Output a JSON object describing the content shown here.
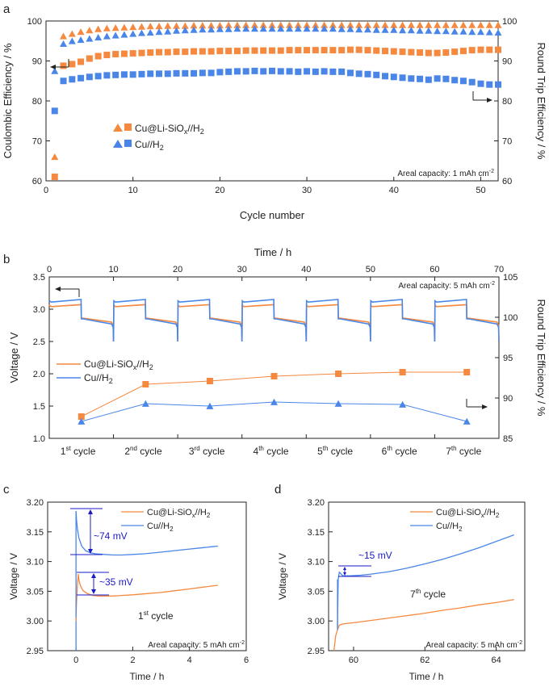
{
  "colors": {
    "orange": "#F4893F",
    "blue": "#4A86E8",
    "annot": "#1A1AC8",
    "axis": "#222222"
  },
  "chart_data": [
    {
      "panel": "a",
      "type": "scatter",
      "xlabel": "Cycle number",
      "ylabel": "Coulombic Efficiency / %",
      "y2label": "Round Trip Efficiency / %",
      "xlim": [
        0,
        52
      ],
      "ylim": [
        60,
        100
      ],
      "y2lim": [
        60,
        100
      ],
      "xticks": [
        0,
        10,
        20,
        30,
        40,
        50
      ],
      "yticks": [
        60,
        70,
        80,
        90,
        100
      ],
      "annotation": "Areal capacity: 1 mAh cm",
      "annotation_sup": "-2",
      "legend": [
        {
          "base": "Cu@Li-SiO",
          "sub1": "x",
          "mid": "//H",
          "sub2": "2"
        },
        {
          "base": "Cu//H",
          "sub1": "",
          "mid": "",
          "sub2": "2"
        }
      ],
      "series": [
        {
          "name": "Cu@Li-SiOx//H2",
          "metric": "Coulombic Efficiency",
          "marker": "triangle",
          "color": "#F4893F",
          "x": [
            1,
            2,
            3,
            4,
            5,
            6,
            7,
            8,
            9,
            10,
            11,
            12,
            13,
            14,
            15,
            16,
            17,
            18,
            19,
            20,
            21,
            22,
            23,
            24,
            25,
            26,
            27,
            28,
            29,
            30,
            31,
            32,
            33,
            34,
            35,
            36,
            37,
            38,
            39,
            40,
            41,
            42,
            43,
            44,
            45,
            46,
            47,
            48,
            49,
            50,
            51,
            52
          ],
          "y": [
            66,
            96.2,
            96.8,
            97.3,
            97.7,
            98,
            98.2,
            98.3,
            98.4,
            98.5,
            98.6,
            98.7,
            98.7,
            98.8,
            98.8,
            98.8,
            98.9,
            98.9,
            98.9,
            98.9,
            99,
            99,
            99,
            99,
            99,
            99,
            99,
            99,
            99,
            99,
            99,
            99,
            99,
            99,
            99,
            99,
            99,
            99,
            99,
            99,
            99,
            99,
            99,
            99,
            99,
            99,
            99,
            99,
            99,
            99,
            99,
            99
          ]
        },
        {
          "name": "Cu@Li-SiOx//H2",
          "metric": "Round Trip Efficiency",
          "marker": "square",
          "color": "#F4893F",
          "x": [
            1,
            2,
            3,
            4,
            5,
            6,
            7,
            8,
            9,
            10,
            11,
            12,
            13,
            14,
            15,
            16,
            17,
            18,
            19,
            20,
            21,
            22,
            23,
            24,
            25,
            26,
            27,
            28,
            29,
            30,
            31,
            32,
            33,
            34,
            35,
            36,
            37,
            38,
            39,
            40,
            41,
            42,
            43,
            44,
            45,
            46,
            47,
            48,
            49,
            50,
            51,
            52
          ],
          "y": [
            61,
            88.8,
            89.2,
            89.8,
            90.6,
            91.2,
            91.5,
            91.7,
            91.8,
            91.9,
            92,
            92.1,
            92.2,
            92.2,
            92.3,
            92.3,
            92.4,
            92.4,
            92.4,
            92.5,
            92.5,
            92.5,
            92.6,
            92.6,
            92.6,
            92.6,
            92.6,
            92.7,
            92.7,
            92.7,
            92.7,
            92.7,
            92.7,
            92.7,
            92.8,
            92.8,
            92.7,
            92.6,
            92.5,
            92.4,
            92.3,
            92.2,
            92.1,
            92,
            92,
            92.1,
            92.3,
            92.5,
            92.7,
            92.8,
            92.8,
            92.8
          ]
        },
        {
          "name": "Cu//H2",
          "metric": "Coulombic Efficiency",
          "marker": "triangle",
          "color": "#4A86E8",
          "x": [
            1,
            2,
            3,
            4,
            5,
            6,
            7,
            8,
            9,
            10,
            11,
            12,
            13,
            14,
            15,
            16,
            17,
            18,
            19,
            20,
            21,
            22,
            23,
            24,
            25,
            26,
            27,
            28,
            29,
            30,
            31,
            32,
            33,
            34,
            35,
            36,
            37,
            38,
            39,
            40,
            41,
            42,
            43,
            44,
            45,
            46,
            47,
            48,
            49,
            50,
            51,
            52
          ],
          "y": [
            87.5,
            94.3,
            95,
            95.3,
            95.6,
            95.9,
            96.2,
            96.4,
            96.6,
            96.8,
            97,
            97.1,
            97.3,
            97.4,
            97.6,
            97.7,
            97.8,
            97.9,
            97.9,
            98,
            98,
            98.1,
            98.1,
            98.1,
            98.1,
            98.1,
            98.1,
            98.1,
            98.1,
            98.1,
            98.1,
            98.1,
            98.1,
            98,
            98,
            97.9,
            97.9,
            97.8,
            97.8,
            97.8,
            97.7,
            97.7,
            97.6,
            97.6,
            97.5,
            97.5,
            97.4,
            97.4,
            97.3,
            97.3,
            97.2,
            97.1
          ]
        },
        {
          "name": "Cu//H2",
          "metric": "Round Trip Efficiency",
          "marker": "square",
          "color": "#4A86E8",
          "x": [
            1,
            2,
            3,
            4,
            5,
            6,
            7,
            8,
            9,
            10,
            11,
            12,
            13,
            14,
            15,
            16,
            17,
            18,
            19,
            20,
            21,
            22,
            23,
            24,
            25,
            26,
            27,
            28,
            29,
            30,
            31,
            32,
            33,
            34,
            35,
            36,
            37,
            38,
            39,
            40,
            41,
            42,
            43,
            44,
            45,
            46,
            47,
            48,
            49,
            50,
            51,
            52
          ],
          "y": [
            77.5,
            85,
            85.4,
            85.7,
            86,
            86.2,
            86.4,
            86.5,
            86.6,
            86.6,
            86.7,
            86.8,
            86.8,
            86.8,
            86.9,
            86.9,
            86.9,
            87,
            87,
            87.2,
            87.3,
            87.4,
            87.4,
            87.5,
            87.4,
            87.5,
            87.4,
            87.4,
            87.3,
            87.4,
            87.3,
            87.4,
            87.3,
            87.3,
            87,
            86.8,
            86.7,
            86.5,
            86.2,
            86,
            85.8,
            85.6,
            85.5,
            85.3,
            85.6,
            85.5,
            85.2,
            85,
            84.7,
            84.3,
            84.1,
            84.1
          ]
        }
      ]
    },
    {
      "panel": "b",
      "type": "line",
      "xlabel": "Time / h",
      "ylabel": "Voltage / V",
      "y2label": "Round Trip Efficiency / %",
      "xlim": [
        0,
        70
      ],
      "ylim": [
        1.0,
        3.5
      ],
      "y2lim": [
        85,
        105
      ],
      "xticks": [
        0,
        10,
        20,
        30,
        40,
        50,
        60,
        70
      ],
      "yticks": [
        1.0,
        1.5,
        2.0,
        2.5,
        3.0,
        3.5
      ],
      "y2ticks": [
        85,
        90,
        95,
        100,
        105
      ],
      "annotation": "Areal capacity: 5 mAh cm",
      "annotation_sup": "-2",
      "cycle_labels": [
        {
          "n": "1",
          "sup": "st",
          "rest": " cycle"
        },
        {
          "n": "2",
          "sup": "nd",
          "rest": " cycle"
        },
        {
          "n": "3",
          "sup": "rd",
          "rest": " cycle"
        },
        {
          "n": "4",
          "sup": "th",
          "rest": " cycle"
        },
        {
          "n": "5",
          "sup": "th",
          "rest": " cycle"
        },
        {
          "n": "6",
          "sup": "th",
          "rest": " cycle"
        },
        {
          "n": "7",
          "sup": "th",
          "rest": " cycle"
        }
      ],
      "legend": [
        {
          "base": "Cu@Li-SiO",
          "sub1": "x",
          "mid": "//H",
          "sub2": "2"
        },
        {
          "base": "Cu//H",
          "sub1": "",
          "mid": "",
          "sub2": "2"
        }
      ],
      "voltage_profile": {
        "Cu@Li-SiOx//H2": {
          "charge_start_V": 3.04,
          "charge_end_V": 3.07,
          "discharge_start_V": 2.86,
          "discharge_end_V": 2.8
        },
        "Cu//H2": {
          "charge_start_V": 3.11,
          "charge_end_V": 3.15,
          "discharge_start_V": 2.85,
          "discharge_end_V": 2.77
        }
      },
      "series": [
        {
          "name": "Cu@Li-SiOx//H2",
          "metric": "Round Trip Efficiency",
          "marker": "square",
          "color": "#F4893F",
          "x": [
            1,
            2,
            3,
            4,
            5,
            6,
            7
          ],
          "y": [
            87.7,
            91.7,
            92.1,
            92.7,
            93.0,
            93.2,
            93.2
          ]
        },
        {
          "name": "Cu//H2",
          "metric": "Round Trip Efficiency",
          "marker": "triangle",
          "color": "#4A86E8",
          "x": [
            1,
            2,
            3,
            4,
            5,
            6,
            7
          ],
          "y": [
            87.1,
            89.3,
            89.0,
            89.5,
            89.3,
            89.2,
            87.1
          ]
        }
      ]
    },
    {
      "panel": "c",
      "type": "line",
      "xlabel": "Time / h",
      "ylabel": "Voltage / V",
      "xlim": [
        -1,
        6
      ],
      "ylim": [
        2.95,
        3.2
      ],
      "xticks": [
        0,
        2,
        4,
        6
      ],
      "yticks": [
        2.95,
        3.0,
        3.05,
        3.1,
        3.15,
        3.2
      ],
      "cycle_label": {
        "n": "1",
        "sup": "st",
        "rest": " cycle"
      },
      "annotation": "Areal capacity: 5 mAh cm",
      "annotation_sup": "-2",
      "overpotential_labels": [
        "~74 mV",
        "~35 mV"
      ],
      "legend": [
        {
          "base": "Cu@Li-SiO",
          "sub1": "x",
          "mid": "//H",
          "sub2": "2"
        },
        {
          "base": "Cu//H",
          "sub1": "",
          "mid": "",
          "sub2": "2"
        }
      ],
      "series": [
        {
          "name": "Cu//H2",
          "color": "#4A86E8",
          "x": [
            0,
            0.02,
            0.05,
            0.1,
            0.2,
            0.35,
            0.5,
            0.7,
            1.0,
            1.3,
            1.6,
            2.0,
            2.4,
            2.8,
            3.2,
            3.6,
            4.0,
            4.4,
            4.8,
            5.0
          ],
          "y": [
            3.185,
            3.17,
            3.155,
            3.14,
            3.126,
            3.118,
            3.115,
            3.113,
            3.112,
            3.111,
            3.111,
            3.112,
            3.113,
            3.115,
            3.117,
            3.119,
            3.121,
            3.123,
            3.125,
            3.126
          ]
        },
        {
          "name": "Cu@Li-SiOx//H2",
          "color": "#F4893F",
          "x": [
            0,
            0.02,
            0.05,
            0.08,
            0.1,
            0.15,
            0.25,
            0.4,
            0.6,
            0.8,
            1.0,
            1.3,
            1.6,
            2.0,
            2.5,
            3.0,
            3.5,
            4.0,
            4.5,
            5.0
          ],
          "y": [
            3.006,
            3.03,
            3.06,
            3.079,
            3.07,
            3.06,
            3.051,
            3.046,
            3.043,
            3.042,
            3.042,
            3.042,
            3.043,
            3.044,
            3.046,
            3.048,
            3.051,
            3.054,
            3.057,
            3.06
          ]
        }
      ]
    },
    {
      "panel": "d",
      "type": "line",
      "xlabel": "Time / h",
      "ylabel": "Voltage / V",
      "xlim": [
        59.3,
        64.8
      ],
      "ylim": [
        2.95,
        3.2
      ],
      "xticks": [
        60,
        62,
        64
      ],
      "yticks": [
        2.95,
        3.0,
        3.05,
        3.1,
        3.15,
        3.2
      ],
      "cycle_label": {
        "n": "7",
        "sup": "th",
        "rest": " cycle"
      },
      "annotation": "Areal capacity: 5 mAh cm",
      "annotation_sup": "-2",
      "overpotential_labels": [
        "~15 mV"
      ],
      "legend": [
        {
          "base": "Cu@Li-SiO",
          "sub1": "x",
          "mid": "//H",
          "sub2": "2"
        },
        {
          "base": "Cu//H",
          "sub1": "",
          "mid": "",
          "sub2": "2"
        }
      ],
      "series": [
        {
          "name": "Cu//H2",
          "color": "#4A86E8",
          "x": [
            59.55,
            59.57,
            59.6,
            59.7,
            59.9,
            60.2,
            60.5,
            61.0,
            61.5,
            62.0,
            62.5,
            63.0,
            63.5,
            64.0,
            64.5
          ],
          "y": [
            2.99,
            3.07,
            3.082,
            3.076,
            3.076,
            3.077,
            3.079,
            3.083,
            3.089,
            3.096,
            3.104,
            3.113,
            3.123,
            3.134,
            3.145
          ]
        },
        {
          "name": "Cu@Li-SiOx//H2",
          "color": "#F4893F",
          "x": [
            59.45,
            59.5,
            59.55,
            59.6,
            59.7,
            60.0,
            60.5,
            61.0,
            61.5,
            62.0,
            62.5,
            63.0,
            63.5,
            64.0,
            64.5
          ],
          "y": [
            2.95,
            2.975,
            2.985,
            2.993,
            2.995,
            2.997,
            3.001,
            3.005,
            3.009,
            3.013,
            3.018,
            3.022,
            3.027,
            3.031,
            3.036
          ]
        }
      ]
    }
  ]
}
